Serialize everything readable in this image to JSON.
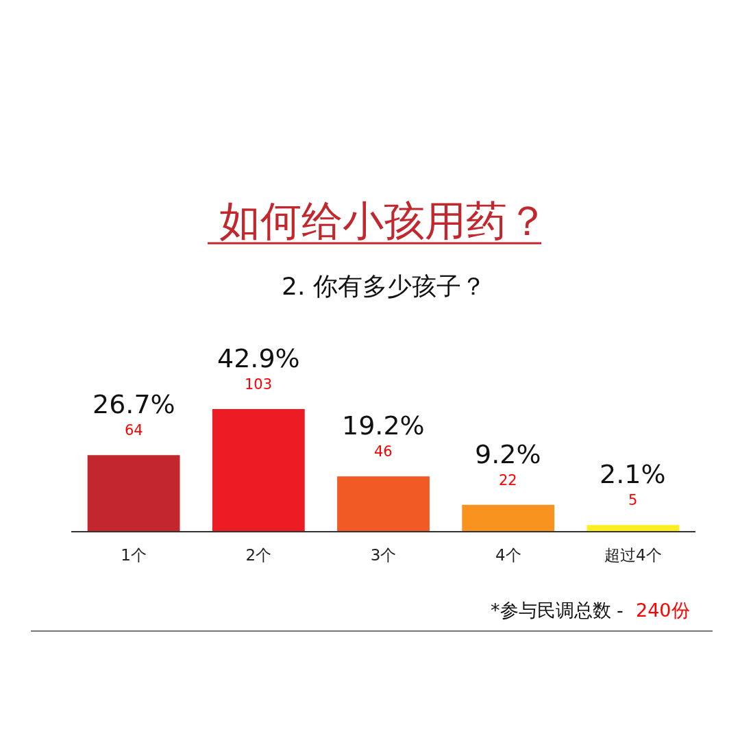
{
  "chart_data": {
    "type": "bar",
    "title": "如何给小孩用药？",
    "subtitle": "2. 你有多少孩子？",
    "categories": [
      "1个",
      "2个",
      "3个",
      "4个",
      "超过4个"
    ],
    "values": [
      26.7,
      42.9,
      19.2,
      9.2,
      2.1
    ],
    "colors": [
      "#c1272d",
      "#ed1c24",
      "#f15a24",
      "#f7931e",
      "#fcee21"
    ],
    "value_labels": [
      "26.7%",
      "42.9%",
      "19.2%",
      "9.2%",
      "2.1%"
    ],
    "annotations": [
      {
        "text": "64",
        "x": "1个",
        "y": 26.7
      },
      {
        "text": "103",
        "x": "2个",
        "y": 42.9
      },
      {
        "text": "46",
        "x": "3个",
        "y": 19.2
      },
      {
        "text": "22",
        "x": "4个",
        "y": 9.2
      },
      {
        "text": "5",
        "x": "超过4个",
        "y": 2.1
      },
      "*参与民调总数 -",
      "240份"
    ]
  }
}
